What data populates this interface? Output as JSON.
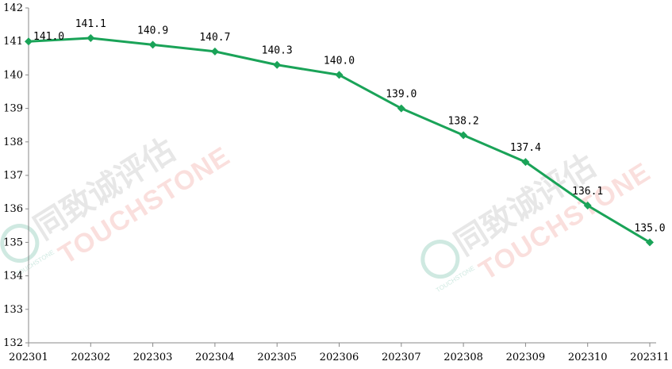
{
  "chart_data": {
    "type": "line",
    "title": "",
    "xlabel": "",
    "ylabel": "",
    "categories": [
      "202301",
      "202302",
      "202303",
      "202304",
      "202305",
      "202306",
      "202307",
      "202308",
      "202309",
      "202310",
      "202311"
    ],
    "series": [
      {
        "values": [
          141.0,
          141.1,
          140.9,
          140.7,
          140.3,
          140.0,
          139.0,
          138.2,
          137.4,
          136.1,
          135.0
        ],
        "labels": [
          "141.0",
          "141.1",
          "140.9",
          "140.7",
          "140.3",
          "140.0",
          "139.0",
          "138.2",
          "137.4",
          "136.1",
          "135.0"
        ],
        "color": "#1aa358",
        "marker": "diamond"
      }
    ],
    "ylim": [
      132,
      142
    ],
    "yticks": [
      "132",
      "133",
      "134",
      "135",
      "136",
      "137",
      "138",
      "139",
      "140",
      "141",
      "142"
    ],
    "grid": false,
    "legend": "none"
  },
  "watermark": {
    "cn_text": "同致诚评估",
    "en_text": "TOUCHSTONE",
    "small_text": "TOUCHSTONE",
    "logo_color": "#9fd3c3"
  }
}
